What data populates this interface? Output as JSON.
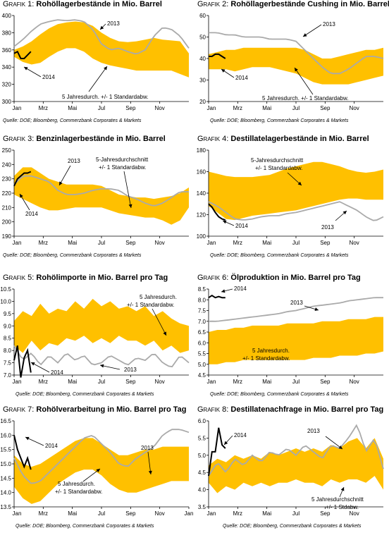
{
  "colors": {
    "band": "#ffc000",
    "series2013": "#aaaaaa",
    "series2014": "#000000",
    "axis": "#000000"
  },
  "chart_data": [
    {
      "type": "area",
      "prefix": "Grafik 1:",
      "title": "Rohöllagerbestände in Mio. Barrel",
      "source": "Quelle: DOE; Bloomberg, Commerzbank Corporates & Markets",
      "ylim": [
        300,
        400
      ],
      "yticks": [
        300,
        320,
        340,
        360,
        380,
        400
      ],
      "xticks": [
        "Jan",
        "Mrz",
        "Mai",
        "Jul",
        "Sep",
        "Nov"
      ],
      "band": {
        "lower": [
          352,
          346,
          343,
          345,
          352,
          358,
          362,
          362,
          358,
          350,
          345,
          342,
          340,
          338,
          336,
          336,
          336,
          336,
          336,
          332,
          328
        ],
        "upper": [
          360,
          364,
          370,
          378,
          385,
          390,
          392,
          393,
          392,
          388,
          380,
          374,
          370,
          369,
          370,
          372,
          374,
          372,
          371,
          370,
          356
        ]
      },
      "series": [
        {
          "name": "2013",
          "values": [
            364,
            372,
            382,
            390,
            393,
            395,
            394,
            395,
            393,
            384,
            367,
            360,
            362,
            358,
            355,
            360,
            376,
            386,
            384,
            376,
            362
          ],
          "weeks": 52
        },
        {
          "name": "2014",
          "values": [
            356,
            358,
            350,
            350,
            354,
            358
          ]
        }
      ],
      "annotations": [
        "2013",
        "2014",
        "5 Jahresdurch. +/-  1 Standardabw."
      ]
    },
    {
      "type": "area",
      "prefix": "Grafik 2:",
      "title": "Rohöllagerbestände Cushing in Mio. Barrel",
      "source": "Quelle: DOE; Bloomberg, Commerzbank Corporates & Markets",
      "ylim": [
        20,
        60
      ],
      "yticks": [
        20,
        30,
        40,
        50,
        60
      ],
      "xticks": [
        "Jan",
        "Mrz",
        "Mai",
        "Jul",
        "Sep",
        "Nov"
      ],
      "band": {
        "lower": [
          35,
          35,
          35,
          34,
          35,
          36,
          36,
          36,
          35,
          34,
          33,
          31,
          29,
          28,
          28,
          28,
          28,
          29,
          30,
          31,
          32
        ],
        "upper": [
          42,
          43,
          44,
          44,
          45,
          45,
          45,
          45,
          45,
          45,
          45,
          44,
          42,
          40,
          40,
          41,
          42,
          43,
          44,
          44,
          45
        ]
      },
      "series": [
        {
          "name": "2013",
          "values": [
            52,
            52,
            51,
            51,
            50,
            50,
            50,
            49,
            49,
            49,
            48,
            44,
            40,
            36,
            33,
            33,
            35,
            38,
            41,
            41,
            40
          ],
          "weeks": 52
        },
        {
          "name": "2014",
          "values": [
            41,
            41,
            42,
            42,
            41,
            40
          ]
        }
      ],
      "annotations": [
        "2013",
        "2014",
        "5 Jahresdurch.  +/-  1 Standardabw."
      ]
    },
    {
      "type": "area",
      "prefix": "Grafik 3:",
      "title": "Benzinlagerbestände in Mio. Barrel",
      "source": "Quelle: DOE; Bloomberg, Commerzbank Corporates & Markets",
      "ylim": [
        190,
        250
      ],
      "yticks": [
        190,
        200,
        210,
        220,
        230,
        240,
        250
      ],
      "xticks": [
        "Jan",
        "Mrz",
        "Mai",
        "Jul",
        "Sep",
        "Nov"
      ],
      "band": {
        "lower": [
          219,
          216,
          213,
          210,
          208,
          208,
          209,
          210,
          210,
          210,
          210,
          208,
          206,
          205,
          204,
          203,
          203,
          201,
          198,
          201,
          210
        ],
        "upper": [
          232,
          238,
          238,
          234,
          230,
          228,
          226,
          226,
          226,
          226,
          225,
          222,
          219,
          218,
          217,
          217,
          216,
          217,
          218,
          220,
          224
        ]
      },
      "series": [
        {
          "name": "2013",
          "values": [
            226,
            232,
            232,
            230,
            228,
            222,
            219,
            219,
            220,
            222,
            223,
            223,
            222,
            218,
            216,
            213,
            211,
            213,
            217,
            221,
            221
          ],
          "weeks": 52
        },
        {
          "name": "2014",
          "values": [
            225,
            230,
            232,
            234,
            234,
            235
          ]
        }
      ],
      "annotations": [
        "2013",
        "2014",
        "5-Jahresdurchschnitt",
        "+/- 1 Standardabw."
      ]
    },
    {
      "type": "area",
      "prefix": "Grafik 4:",
      "title": "Destillatelagerbestände in Mio. Barrel",
      "source": "Quelle: DOE; Bloomberg, Commerzbank Corporates & Markets",
      "ylim": [
        100,
        180
      ],
      "yticks": [
        100,
        120,
        140,
        160,
        180
      ],
      "xticks": [
        "Jan",
        "Mrz",
        "Mai",
        "Jul",
        "Sep",
        "Nov"
      ],
      "band": {
        "lower": [
          128,
          122,
          116,
          115,
          117,
          119,
          120,
          121,
          122,
          123,
          124,
          126,
          128,
          130,
          132,
          134,
          135,
          135,
          134,
          134,
          134
        ],
        "upper": [
          160,
          158,
          156,
          155,
          155,
          155,
          156,
          157,
          160,
          163,
          165,
          167,
          169,
          169,
          167,
          165,
          162,
          160,
          159,
          160,
          162
        ]
      },
      "series": [
        {
          "name": "2013",
          "values": [
            132,
            128,
            122,
            116,
            115,
            116,
            118,
            119,
            119,
            121,
            122,
            124,
            126,
            128,
            130,
            132,
            128,
            124,
            118,
            114,
            118
          ],
          "weeks": 52
        },
        {
          "name": "2014",
          "values": [
            130,
            127,
            122,
            118,
            116,
            115
          ]
        }
      ],
      "annotations": [
        "5-Jahresdurchschnitt",
        "+/- 1 Standardabw.",
        "2013",
        "2014"
      ]
    },
    {
      "type": "area",
      "prefix": "Grafik 5:",
      "title": "Rohölimporte in Mio. Barrel pro Tag",
      "source": "Quelle: DOE; Bloomberg, Commerzbank Corporates & Markets",
      "ylim": [
        7.0,
        10.5
      ],
      "yticks": [
        7.0,
        7.5,
        8.0,
        8.5,
        9.0,
        9.5,
        10.0,
        10.5
      ],
      "xticks": [
        "Jan",
        "Mrz",
        "Mai",
        "Jul",
        "Sep",
        "Nov"
      ],
      "band": {
        "lower": [
          8.2,
          7.9,
          8.4,
          8.0,
          8.3,
          8.2,
          8.5,
          8.4,
          8.6,
          8.3,
          8.5,
          8.3,
          8.6,
          8.4,
          8.4,
          8.2,
          8.4,
          8.0,
          8.2,
          7.9,
          8.0
        ],
        "upper": [
          9.2,
          9.6,
          9.4,
          9.9,
          9.5,
          9.7,
          9.6,
          10.0,
          9.7,
          10.1,
          9.8,
          10.0,
          9.7,
          9.8,
          9.6,
          9.8,
          9.4,
          9.6,
          9.3,
          9.1,
          9.0
        ]
      },
      "series": [
        {
          "name": "2013",
          "values": [
            8.2,
            7.6,
            7.9,
            7.4,
            7.8,
            7.5,
            7.9,
            7.6,
            7.8,
            7.4,
            7.5,
            7.8,
            7.6,
            7.4,
            7.7,
            7.6,
            7.9,
            7.5,
            7.3,
            7.8,
            7.5
          ],
          "weeks": 52
        },
        {
          "name": "2014",
          "values": [
            7.6,
            8.2,
            6.9,
            7.7,
            8.0,
            7.1
          ]
        }
      ],
      "annotations": [
        "5 Jahresdurch.",
        "+/-  1 Standardabw.",
        "2013",
        "2014"
      ]
    },
    {
      "type": "area",
      "prefix": "Grafik 6:",
      "title": "Ölproduktion in Mio. Barrel pro Tag",
      "source": "Quelle: DOE; Bloomberg, Commerzbank Corporates & Markets",
      "ylim": [
        4.5,
        8.5
      ],
      "yticks": [
        4.5,
        5.0,
        5.5,
        6.0,
        6.5,
        7.0,
        7.5,
        8.0,
        8.5
      ],
      "xticks": [
        "Jan",
        "Mrz",
        "Mai",
        "Jul",
        "Sep",
        "Nov"
      ],
      "band": {
        "lower": [
          5.0,
          5.0,
          5.1,
          5.1,
          5.2,
          5.2,
          5.2,
          5.2,
          5.2,
          5.2,
          5.2,
          5.2,
          5.3,
          5.3,
          5.3,
          5.4,
          5.4,
          5.4,
          5.5,
          5.5,
          5.6
        ],
        "upper": [
          6.5,
          6.6,
          6.6,
          6.7,
          6.7,
          6.8,
          6.8,
          6.8,
          6.8,
          6.9,
          6.9,
          6.9,
          6.9,
          7.0,
          7.0,
          7.0,
          7.1,
          7.1,
          7.1,
          7.2,
          7.2
        ]
      },
      "series": [
        {
          "name": "2013",
          "values": [
            7.0,
            7.0,
            7.05,
            7.1,
            7.15,
            7.2,
            7.25,
            7.3,
            7.35,
            7.45,
            7.5,
            7.6,
            7.7,
            7.75,
            7.8,
            7.85,
            7.95,
            8.0,
            8.05,
            8.1,
            8.1
          ],
          "weeks": 52
        },
        {
          "name": "2014",
          "values": [
            8.1,
            8.2,
            8.1,
            8.15,
            8.1,
            8.1
          ]
        }
      ],
      "annotations": [
        "2014",
        "2013",
        "5 Jahresdurch.",
        "+/-  1 Standardabw."
      ]
    },
    {
      "type": "area",
      "prefix": "Grafik 7:",
      "title": "Rohölverarbeitung in Mio. Barrel pro Tag",
      "source": "Quelle: DOE; Bloomberg, Commerzbank Corporates & Markets",
      "ylim": [
        13.5,
        16.5
      ],
      "yticks": [
        13.5,
        14.0,
        14.5,
        15.0,
        15.5,
        16.0,
        16.5
      ],
      "xticks": [
        "Jan",
        "Mrz",
        "Mai",
        "Jul",
        "Sep",
        "Nov",
        "Jan"
      ],
      "band": {
        "lower": [
          14.2,
          13.8,
          13.6,
          13.7,
          14.0,
          14.3,
          14.5,
          14.7,
          14.8,
          14.8,
          14.6,
          14.3,
          14.1,
          14.0,
          14.0,
          14.1,
          14.2,
          14.3,
          14.4,
          14.4,
          14.4
        ],
        "upper": [
          15.3,
          15.0,
          14.9,
          15.0,
          15.2,
          15.4,
          15.6,
          15.8,
          15.9,
          15.9,
          15.7,
          15.5,
          15.3,
          15.3,
          15.4,
          15.5,
          15.5,
          15.6,
          15.6,
          15.6,
          15.6
        ]
      },
      "series": [
        {
          "name": "2013",
          "values": [
            15.2,
            14.6,
            14.3,
            14.4,
            14.7,
            15.0,
            15.3,
            15.6,
            15.9,
            16.0,
            15.7,
            15.4,
            15.0,
            14.9,
            15.2,
            15.4,
            15.6,
            16.0,
            16.2,
            16.2,
            16.1
          ],
          "weeks": 52
        },
        {
          "name": "2014",
          "values": [
            16.0,
            15.5,
            15.2,
            14.9,
            15.2,
            14.8
          ]
        }
      ],
      "annotations": [
        "2014",
        "2013",
        "5 Jahresdurch.",
        "+/-  1 Standardabw."
      ]
    },
    {
      "type": "area",
      "prefix": "Grafik 8:",
      "title": "Destillatenachfrage in Mio. Barrel pro Tag",
      "source": "Quelle: DOE; Bloomberg, Commerzbank Corporates & Markets",
      "ylim": [
        3.5,
        6.0
      ],
      "yticks": [
        3.5,
        4.0,
        4.5,
        5.0,
        5.5,
        6.0
      ],
      "xticks": [
        "Jan",
        "Mrz",
        "Mai",
        "Jul",
        "Sep",
        "Nov"
      ],
      "band": {
        "lower": [
          4.2,
          3.9,
          4.1,
          4.0,
          4.2,
          4.1,
          4.2,
          4.1,
          4.2,
          4.2,
          4.3,
          4.2,
          4.2,
          4.1,
          4.3,
          4.2,
          4.3,
          4.3,
          4.2,
          4.4,
          4.0
        ],
        "upper": [
          4.7,
          4.9,
          4.8,
          5.0,
          4.9,
          5.0,
          4.9,
          5.1,
          5.0,
          5.1,
          5.2,
          5.1,
          5.2,
          5.1,
          5.3,
          5.2,
          5.4,
          5.5,
          5.2,
          5.5,
          4.9
        ]
      },
      "series": [
        {
          "name": "2013",
          "values": [
            4.4,
            4.8,
            4.5,
            4.9,
            4.7,
            5.0,
            4.8,
            5.1,
            5.0,
            5.2,
            5.0,
            5.3,
            5.1,
            4.9,
            5.3,
            5.2,
            5.5,
            5.9,
            5.1,
            5.5,
            4.6
          ],
          "weeks": 52
        },
        {
          "name": "2014",
          "values": [
            4.4,
            5.1,
            5.1,
            5.8,
            5.3,
            5.2
          ]
        }
      ],
      "annotations": [
        "2014",
        "2013",
        "5 Jahresdurchschnitt",
        "+/- 1 Stdabw."
      ]
    }
  ]
}
